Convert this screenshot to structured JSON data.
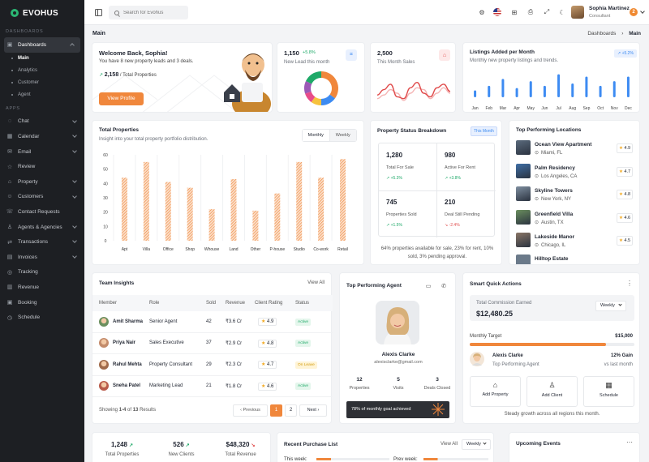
{
  "app": {
    "brand": "EVOHUS"
  },
  "sidebar": {
    "section_dashboards": "DASHBOARDS",
    "section_apps": "APPS",
    "dashboards_label": "Dashboards",
    "sub_items": [
      "Main",
      "Analytics",
      "Customer",
      "Agent"
    ],
    "apps": [
      {
        "label": "Chat",
        "icon": "chat-icon",
        "chev": true
      },
      {
        "label": "Calendar",
        "icon": "calendar-icon",
        "chev": true
      },
      {
        "label": "Email",
        "icon": "email-icon",
        "chev": true
      },
      {
        "label": "Review",
        "icon": "review-icon",
        "chev": false
      },
      {
        "label": "Property",
        "icon": "property-icon",
        "chev": true
      },
      {
        "label": "Customers",
        "icon": "customers-icon",
        "chev": true
      },
      {
        "label": "Contact Requests",
        "icon": "contact-icon",
        "chev": false
      },
      {
        "label": "Agents & Agencies",
        "icon": "agents-icon",
        "chev": true
      },
      {
        "label": "Transactions",
        "icon": "transactions-icon",
        "chev": true
      },
      {
        "label": "Invoices",
        "icon": "invoices-icon",
        "chev": true
      },
      {
        "label": "Tracking",
        "icon": "tracking-icon",
        "chev": false
      },
      {
        "label": "Revenue",
        "icon": "revenue-icon",
        "chev": false
      },
      {
        "label": "Booking",
        "icon": "booking-icon",
        "chev": false
      },
      {
        "label": "Schedule",
        "icon": "schedule-icon",
        "chev": false
      }
    ]
  },
  "topbar": {
    "search_placeholder": "Search for Evohus",
    "user_name": "Sophia Martinez",
    "user_role": "Consultant",
    "notif_count": "2"
  },
  "breadcrumb": {
    "page_title": "Main",
    "parent": "Dashboards",
    "current": "Main"
  },
  "welcome": {
    "title": "Welcome Back, Sophia!",
    "text": "You have 8 new property leads and 3 deals.",
    "total_value": "2,158",
    "total_label": "/ Total Properties",
    "button": "View Profile"
  },
  "new_lead": {
    "value": "1,150",
    "change": "+5.8%",
    "label": "New Lead this month"
  },
  "sales": {
    "value": "2,500",
    "label": "This Month Sales"
  },
  "listings": {
    "title": "Listings Added per Month",
    "subtitle": "Monthly new property listings and trends.",
    "badge": "+5.2%"
  },
  "total_properties": {
    "title": "Total Properties",
    "subtitle": "Insight into your total property portfolio distribution.",
    "tab_monthly": "Monthly",
    "tab_weekly": "Weekly"
  },
  "chart_data": [
    {
      "type": "bar",
      "title": "Total Properties",
      "categories": [
        "Apt",
        "Villa",
        "Office",
        "Shop",
        "Whouse",
        "Land",
        "Other",
        "P-house",
        "Studio",
        "Co-work",
        "Retail"
      ],
      "values": [
        44,
        55,
        41,
        37,
        22,
        43,
        21,
        33,
        55,
        44,
        57
      ],
      "yticks": [
        0,
        10,
        20,
        30,
        40,
        50,
        60
      ],
      "ylim": [
        0,
        60
      ],
      "color": "#f0873c"
    },
    {
      "type": "bar",
      "title": "Listings Added per Month",
      "categories": [
        "Jan",
        "Feb",
        "Mar",
        "Apr",
        "May",
        "Jun",
        "Jul",
        "Aug",
        "Sep",
        "Oct",
        "Nov",
        "Dec"
      ],
      "values": [
        3,
        5,
        8,
        4,
        7,
        5,
        10,
        6,
        9,
        5,
        7,
        9
      ],
      "color": "#3d8bf2"
    },
    {
      "type": "pie",
      "title": "New Lead this month",
      "values": [
        35,
        15,
        10,
        10,
        12,
        18
      ],
      "colors": [
        "#f0873c",
        "#3d8bf2",
        "#f6c23e",
        "#e84c8a",
        "#9b59b6",
        "#1ea968"
      ]
    },
    {
      "type": "line",
      "title": "This Month Sales",
      "series": [
        {
          "values": [
            40,
            55,
            70,
            35,
            30,
            60,
            75,
            45,
            35,
            60,
            70,
            50
          ],
          "color": "#e04b4b"
        },
        {
          "values": [
            30,
            40,
            55,
            45,
            25,
            45,
            60,
            55,
            30,
            45,
            60,
            45
          ],
          "color": "#f5b5b5"
        }
      ]
    }
  ],
  "status_breakdown": {
    "title": "Property Status Breakdown",
    "badge": "This Month",
    "stats": [
      {
        "value": "1,280",
        "label": "Total For Sale",
        "change": "+5.3%",
        "dir": "up"
      },
      {
        "value": "980",
        "label": "Active For Rent",
        "change": "+3.8%",
        "dir": "up"
      },
      {
        "value": "745",
        "label": "Properties Sold",
        "change": "+1.5%",
        "dir": "up"
      },
      {
        "value": "210",
        "label": "Deal Still Pending",
        "change": "-2.4%",
        "dir": "down"
      }
    ],
    "footer": "64% properties available for sale, 23% for rent, 10% sold, 3% pending approval."
  },
  "top_locations": {
    "title": "Top Performing Locations",
    "items": [
      {
        "name": "Ocean View Apartment",
        "city": "Miami, FL",
        "rating": "4.9"
      },
      {
        "name": "Palm Residency",
        "city": "Los Angeles, CA",
        "rating": "4.7"
      },
      {
        "name": "Skyline Towers",
        "city": "New York, NY",
        "rating": "4.8"
      },
      {
        "name": "Greenfield Villa",
        "city": "Austin, TX",
        "rating": "4.6"
      },
      {
        "name": "Lakeside Manor",
        "city": "Chicago, IL",
        "rating": "4.5"
      }
    ],
    "cut_item": "Hilltop Estate"
  },
  "team": {
    "title": "Team Insights",
    "view_all": "View All",
    "headers": [
      "Member",
      "Role",
      "Sold",
      "Revenue",
      "Client Rating",
      "Status"
    ],
    "rows": [
      {
        "name": "Amit Sharma",
        "role": "Senior Agent",
        "sold": "42",
        "revenue": "₹3.6 Cr",
        "rating": "4.9",
        "status": "Active"
      },
      {
        "name": "Priya Nair",
        "role": "Sales Executive",
        "sold": "37",
        "revenue": "₹2.9 Cr",
        "rating": "4.8",
        "status": "Active"
      },
      {
        "name": "Rahul Mehta",
        "role": "Property Consultant",
        "sold": "29",
        "revenue": "₹2.3 Cr",
        "rating": "4.7",
        "status": "On Leave"
      },
      {
        "name": "Sneha Patel",
        "role": "Marketing Lead",
        "sold": "21",
        "revenue": "₹1.8 Cr",
        "rating": "4.6",
        "status": "Active"
      }
    ],
    "showing": "Showing",
    "range": "1-4",
    "of": "of",
    "total": "13",
    "results": "Results",
    "prev": "Previous",
    "next": "Next",
    "pages": [
      "1",
      "2"
    ]
  },
  "top_agent": {
    "title": "Top Performing Agent",
    "name": "Alexis Clarke",
    "email": "alexisclarke@gmail.com",
    "stats": [
      {
        "value": "12",
        "label": "Properties"
      },
      {
        "value": "5",
        "label": "Visits"
      },
      {
        "value": "3",
        "label": "Deals Closed"
      }
    ],
    "goal": "78% of monthly goal achieved"
  },
  "smart": {
    "title": "Smart Quick Actions",
    "commission_label": "Total Commission Earned",
    "commission_value": "$12,480.25",
    "period": "Weekly",
    "target_label": "Monthly Target",
    "target_value": "$15,000",
    "target_progress": 0.83,
    "agent_name": "Alexis Clarke",
    "agent_role": "Top Performing Agent",
    "gain": "12% Gain",
    "gain_sub": "vs last month",
    "actions": [
      "Add Property",
      "Add Client",
      "Schedule"
    ],
    "footer": "Steady growth across all regions this month."
  },
  "bottom": {
    "stats": [
      {
        "value": "1,248",
        "label": "Total Properties"
      },
      {
        "value": "526",
        "label": "New Clients"
      },
      {
        "value": "$48,320",
        "label": "Total Revenue"
      }
    ],
    "purchase_title": "Recent Purchase List",
    "purchase_view_all": "View All",
    "purchase_period": "Weekly",
    "this_week": "This week:",
    "prev_week": "Prev week:",
    "events_title": "Upcoming Events"
  }
}
